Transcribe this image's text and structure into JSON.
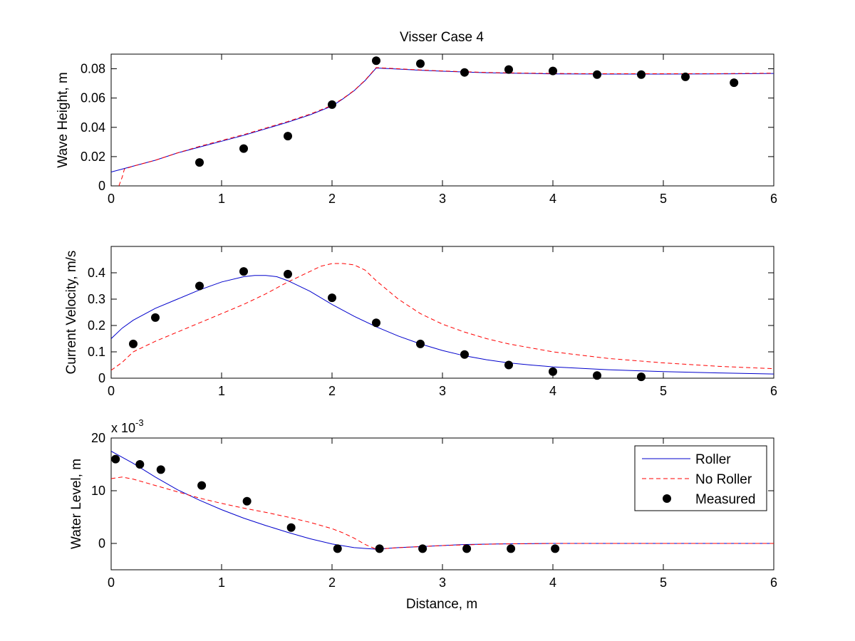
{
  "figure": {
    "title": "Visser Case 4",
    "xlabel": "Distance, m"
  },
  "legend": {
    "entries": [
      {
        "label": "Roller",
        "color": "#0000cc",
        "style": "solid"
      },
      {
        "label": "No Roller",
        "color": "#ff0000",
        "style": "dashed"
      },
      {
        "label": "Measured",
        "color": "#000000",
        "style": "marker"
      }
    ],
    "placement": "top-right of bottom panel"
  },
  "chart_data": [
    {
      "type": "line",
      "title": "Visser Case 4",
      "xlabel": "",
      "ylabel": "Wave Height, m",
      "xlim": [
        0,
        6
      ],
      "ylim": [
        0,
        0.09
      ],
      "xticks": [
        0,
        1,
        2,
        3,
        4,
        5,
        6
      ],
      "xtick_labels": [
        "0",
        "1",
        "2",
        "3",
        "4",
        "5",
        "6"
      ],
      "yticks": [
        0,
        0.02,
        0.04,
        0.06,
        0.08
      ],
      "ytick_labels": [
        "0",
        "0.02",
        "0.04",
        "0.06",
        "0.08"
      ],
      "grid": false,
      "series": [
        {
          "type": "line",
          "color": "#0000cc",
          "dash": "solid",
          "x": [
            0,
            0.2,
            0.4,
            0.6,
            0.8,
            1.0,
            1.2,
            1.4,
            1.6,
            1.8,
            2.0,
            2.1,
            2.2,
            2.3,
            2.4,
            2.6,
            2.8,
            3.0,
            3.2,
            3.4,
            3.6,
            3.8,
            4.0,
            4.5,
            5.0,
            5.5,
            6.0
          ],
          "y": [
            0.0095,
            0.0135,
            0.0175,
            0.0225,
            0.0265,
            0.0305,
            0.0345,
            0.039,
            0.0435,
            0.0485,
            0.0545,
            0.0595,
            0.065,
            0.072,
            0.0805,
            0.0798,
            0.079,
            0.0783,
            0.0778,
            0.0773,
            0.077,
            0.0768,
            0.0765,
            0.0764,
            0.0764,
            0.0765,
            0.0768
          ]
        },
        {
          "type": "line",
          "color": "#ff0000",
          "dash": "dashed",
          "x": [
            0.07,
            0.1,
            0.12,
            0.2,
            0.4,
            0.6,
            0.8,
            1.0,
            1.2,
            1.4,
            1.6,
            1.8,
            2.0,
            2.1,
            2.2,
            2.3,
            2.4,
            2.6,
            2.8,
            3.0,
            3.2,
            3.4,
            3.6,
            3.8,
            4.0,
            4.5,
            5.0,
            5.5,
            6.0
          ],
          "y": [
            0.0,
            0.006,
            0.0115,
            0.0135,
            0.0175,
            0.0225,
            0.027,
            0.031,
            0.035,
            0.0395,
            0.044,
            0.049,
            0.055,
            0.0597,
            0.0652,
            0.0722,
            0.0808,
            0.08,
            0.0792,
            0.0785,
            0.078,
            0.0775,
            0.0772,
            0.077,
            0.0768,
            0.0766,
            0.0766,
            0.0767,
            0.077
          ]
        },
        {
          "type": "scatter",
          "color": "#000000",
          "x": [
            0.8,
            1.2,
            1.6,
            2.0,
            2.4,
            2.8,
            3.2,
            3.6,
            4.0,
            4.4,
            4.8,
            5.2,
            5.64
          ],
          "y": [
            0.016,
            0.0255,
            0.034,
            0.0555,
            0.0855,
            0.0835,
            0.0775,
            0.0795,
            0.0785,
            0.076,
            0.076,
            0.0745,
            0.0705
          ]
        }
      ]
    },
    {
      "type": "line",
      "title": "",
      "xlabel": "",
      "ylabel": "Current Velocity, m/s",
      "xlim": [
        0,
        6
      ],
      "ylim": [
        0,
        0.5
      ],
      "xticks": [
        0,
        1,
        2,
        3,
        4,
        5,
        6
      ],
      "xtick_labels": [
        "0",
        "1",
        "2",
        "3",
        "4",
        "5",
        "6"
      ],
      "yticks": [
        0,
        0.1,
        0.2,
        0.3,
        0.4
      ],
      "ytick_labels": [
        "0",
        "0.1",
        "0.2",
        "0.3",
        "0.4"
      ],
      "grid": false,
      "series": [
        {
          "type": "line",
          "color": "#0000cc",
          "dash": "solid",
          "x": [
            0,
            0.1,
            0.2,
            0.4,
            0.6,
            0.8,
            1.0,
            1.2,
            1.3,
            1.4,
            1.5,
            1.6,
            1.8,
            2.0,
            2.2,
            2.4,
            2.6,
            2.8,
            3.0,
            3.2,
            3.4,
            3.6,
            3.8,
            4.0,
            4.5,
            5.0,
            5.5,
            6.0
          ],
          "y": [
            0.15,
            0.19,
            0.22,
            0.265,
            0.3,
            0.335,
            0.365,
            0.385,
            0.39,
            0.39,
            0.385,
            0.37,
            0.33,
            0.28,
            0.235,
            0.195,
            0.16,
            0.13,
            0.105,
            0.085,
            0.07,
            0.058,
            0.05,
            0.043,
            0.032,
            0.025,
            0.02,
            0.016
          ]
        },
        {
          "type": "line",
          "color": "#ff0000",
          "dash": "dashed",
          "x": [
            0,
            0.1,
            0.2,
            0.4,
            0.6,
            0.8,
            1.0,
            1.2,
            1.4,
            1.6,
            1.8,
            1.9,
            2.0,
            2.1,
            2.2,
            2.3,
            2.4,
            2.6,
            2.8,
            3.0,
            3.2,
            3.4,
            3.6,
            3.8,
            4.0,
            4.5,
            5.0,
            5.5,
            6.0
          ],
          "y": [
            0.03,
            0.06,
            0.1,
            0.14,
            0.175,
            0.21,
            0.245,
            0.28,
            0.32,
            0.365,
            0.405,
            0.425,
            0.435,
            0.435,
            0.43,
            0.41,
            0.37,
            0.3,
            0.245,
            0.205,
            0.175,
            0.15,
            0.13,
            0.115,
            0.1,
            0.075,
            0.058,
            0.045,
            0.036
          ]
        },
        {
          "type": "scatter",
          "color": "#000000",
          "x": [
            0.2,
            0.4,
            0.8,
            1.2,
            1.6,
            2.0,
            2.4,
            2.8,
            3.2,
            3.6,
            4.0,
            4.4,
            4.8
          ],
          "y": [
            0.13,
            0.23,
            0.35,
            0.405,
            0.395,
            0.305,
            0.21,
            0.13,
            0.09,
            0.05,
            0.025,
            0.01,
            0.005
          ]
        }
      ]
    },
    {
      "type": "line",
      "title": "",
      "xlabel": "Distance, m",
      "ylabel": "Water Level, m",
      "y_exponent_label": "x 10",
      "y_exponent_power": "-3",
      "xlim": [
        0,
        6
      ],
      "ylim": [
        -5,
        20
      ],
      "xticks": [
        0,
        1,
        2,
        3,
        4,
        5,
        6
      ],
      "xtick_labels": [
        "0",
        "1",
        "2",
        "3",
        "4",
        "5",
        "6"
      ],
      "yticks": [
        0,
        10,
        20
      ],
      "ytick_labels": [
        "0",
        "10",
        "20"
      ],
      "grid": false,
      "series": [
        {
          "name": "Roller",
          "type": "line",
          "color": "#0000cc",
          "dash": "solid",
          "x": [
            0,
            0.2,
            0.4,
            0.6,
            0.8,
            1.0,
            1.2,
            1.4,
            1.6,
            1.8,
            2.0,
            2.2,
            2.4,
            2.6,
            2.8,
            3.0,
            3.2,
            3.5,
            4.0,
            5.0,
            6.0
          ],
          "y": [
            17.5,
            15.2,
            12.6,
            10.2,
            8.2,
            6.4,
            4.8,
            3.4,
            2.1,
            0.9,
            -0.1,
            -0.8,
            -1.1,
            -0.8,
            -0.6,
            -0.4,
            -0.2,
            -0.1,
            0,
            0,
            0
          ]
        },
        {
          "name": "No Roller",
          "type": "line",
          "color": "#ff0000",
          "dash": "dashed",
          "x": [
            0,
            0.1,
            0.2,
            0.4,
            0.6,
            0.8,
            1.0,
            1.2,
            1.4,
            1.6,
            1.8,
            2.0,
            2.1,
            2.2,
            2.3,
            2.4,
            2.6,
            2.8,
            3.0,
            3.5,
            4.0,
            5.0,
            6.0
          ],
          "y": [
            12.3,
            12.6,
            12.2,
            11.0,
            9.8,
            8.6,
            7.6,
            6.7,
            5.9,
            5.0,
            4.0,
            2.8,
            2.0,
            1.0,
            -0.2,
            -1.1,
            -0.8,
            -0.6,
            -0.4,
            -0.1,
            0,
            0,
            0
          ]
        },
        {
          "name": "Measured",
          "type": "scatter",
          "color": "#000000",
          "x": [
            0.04,
            0.26,
            0.45,
            0.82,
            1.23,
            1.63,
            2.05,
            2.43,
            2.82,
            3.22,
            3.62,
            4.02
          ],
          "y": [
            16,
            15,
            14,
            11,
            8,
            3,
            -1,
            -1,
            -1,
            -1,
            -1,
            -1
          ]
        }
      ]
    }
  ]
}
